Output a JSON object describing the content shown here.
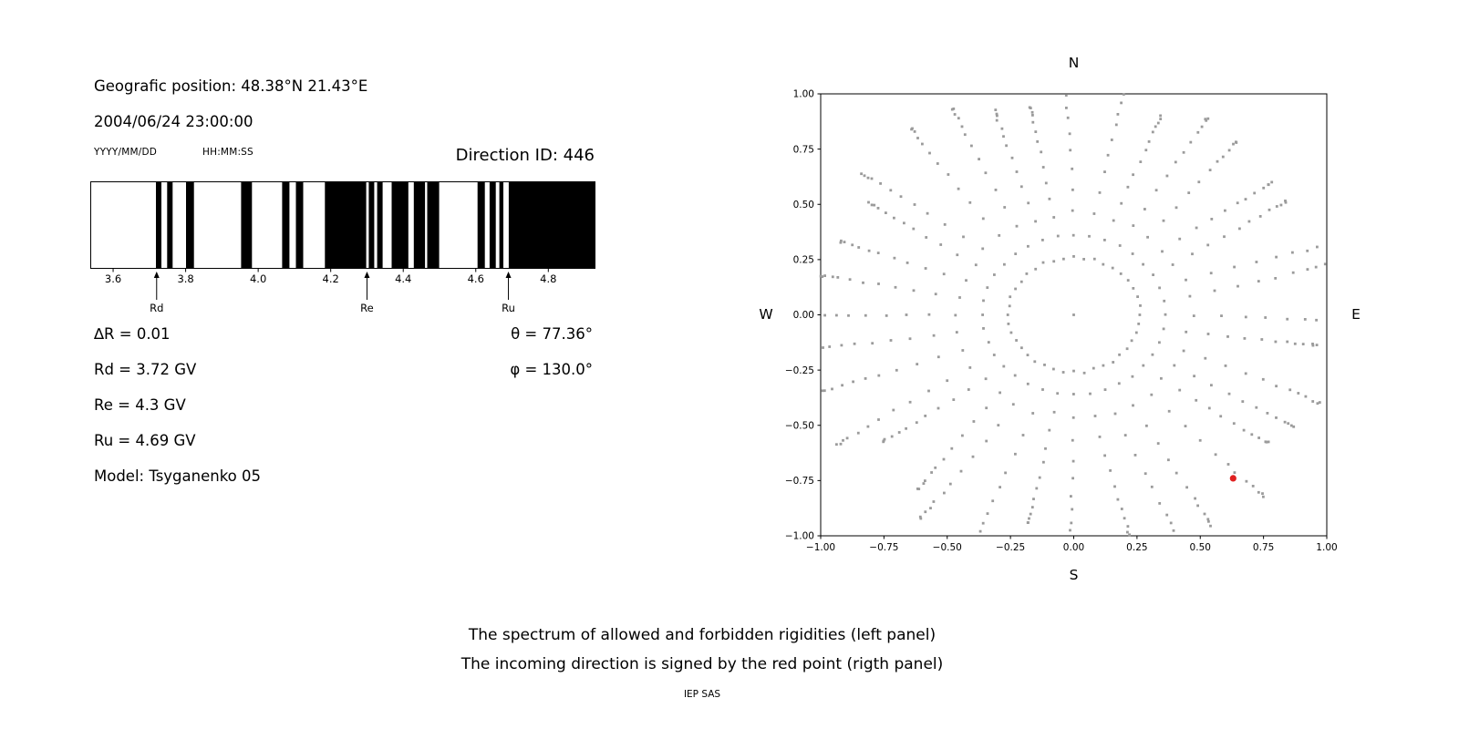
{
  "left_panel": {
    "position": "Geografic position: 48.38°N 21.43°E",
    "datetime": "2004/06/24 23:00:00",
    "date_format": "YYYY/MM/DD",
    "time_format": "HH:MM:SS",
    "direction_id": "Direction ID: 446",
    "info_lines": [
      "∆R = 0.01",
      "Rd = 3.72 GV",
      "Re = 4.3 GV",
      "Ru = 4.69 GV",
      "Model: Tsyganenko 05"
    ],
    "theta": "θ = 77.36°",
    "phi": "φ = 130.0°"
  },
  "captions": {
    "line1": "The spectrum of allowed and forbidden rigidities (left panel)",
    "line2": "The incoming direction is signed by the red point (rigth panel)",
    "footer": "IEP SAS"
  },
  "chart_data": [
    {
      "type": "bar",
      "name": "rigidity-spectrum",
      "xlim": [
        3.537,
        4.93
      ],
      "x_ticks": [
        3.6,
        3.8,
        4.0,
        4.2,
        4.4,
        4.6,
        4.8
      ],
      "bar_color": "#000000",
      "background": "#ffffff",
      "delta_r": 0.01,
      "rd_gv": 3.72,
      "re_gv": 4.3,
      "ru_gv": 4.69,
      "model": "Tsyganenko 05",
      "forbidden_intervals": [
        [
          3.718,
          3.733
        ],
        [
          3.749,
          3.764
        ],
        [
          3.801,
          3.823
        ],
        [
          3.953,
          3.983
        ],
        [
          4.066,
          4.086
        ],
        [
          4.104,
          4.124
        ],
        [
          4.184,
          4.298
        ],
        [
          4.305,
          4.32
        ],
        [
          4.328,
          4.343
        ],
        [
          4.368,
          4.414
        ],
        [
          4.429,
          4.46
        ],
        [
          4.466,
          4.499
        ],
        [
          4.605,
          4.625
        ],
        [
          4.638,
          4.655
        ],
        [
          4.665,
          4.676
        ],
        [
          4.691,
          4.93
        ]
      ],
      "markers": [
        {
          "label": "Rd",
          "x": 3.72
        },
        {
          "label": "Re",
          "x": 4.3
        },
        {
          "label": "Ru",
          "x": 4.69
        }
      ]
    },
    {
      "type": "scatter",
      "name": "incoming-direction-map",
      "xlim": [
        -1,
        1
      ],
      "ylim": [
        -1,
        1
      ],
      "x_ticks": [
        -1,
        -0.75,
        -0.5,
        -0.25,
        0,
        0.25,
        0.5,
        0.75,
        1
      ],
      "y_ticks": [
        -1,
        -0.75,
        -0.5,
        -0.25,
        0,
        0.25,
        0.5,
        0.75,
        1
      ],
      "compass_labels": {
        "top": "N",
        "bottom": "S",
        "left": "W",
        "right": "E"
      },
      "dot_color": "#9b9b9b",
      "center_dot": [
        0,
        0
      ],
      "ring": {
        "radius": 0.26,
        "points": 40
      },
      "spokes": {
        "count": 36,
        "angle_step_deg": 10,
        "r_start": 0.36,
        "r_end": 1.02,
        "points_per_spoke": 13
      },
      "red_point": {
        "x": 0.63,
        "y": -0.74,
        "color": "#e02020"
      }
    }
  ]
}
